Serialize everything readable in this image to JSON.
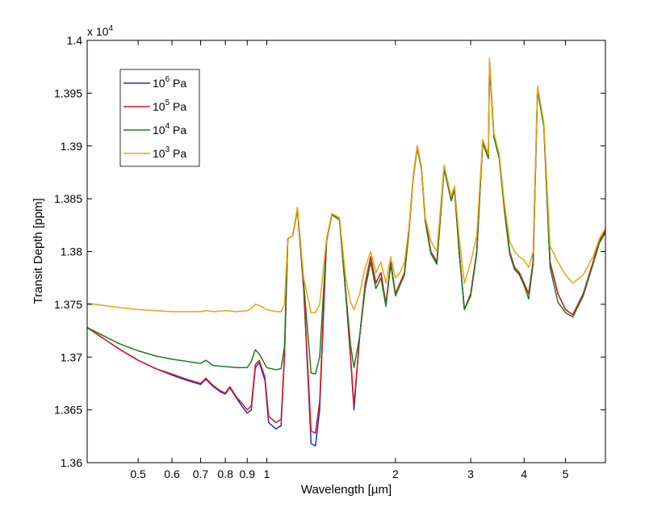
{
  "chart_data": {
    "type": "line",
    "xlabel": "Wavelength [µm]",
    "ylabel": "Transit Depth [ppm]",
    "y_multiplier_label": "x 10",
    "y_multiplier_exp": "4",
    "x_scale": "log",
    "xlim": [
      0.38,
      6.2
    ],
    "ylim": [
      1.36,
      1.4
    ],
    "x_ticks": [
      0.5,
      0.6,
      0.7,
      0.8,
      0.9,
      1,
      2,
      3,
      4,
      5
    ],
    "x_tick_labels": [
      "0.5",
      "0.6",
      "0.7",
      "0.8",
      "0.9",
      "1",
      "2",
      "3",
      "4",
      "5"
    ],
    "y_ticks": [
      1.36,
      1.365,
      1.37,
      1.375,
      1.38,
      1.385,
      1.39,
      1.395,
      1.4
    ],
    "y_tick_labels": [
      "1.36",
      "1.365",
      "1.37",
      "1.375",
      "1.38",
      "1.385",
      "1.39",
      "1.395",
      "1.4"
    ],
    "grid": false,
    "legend_position": "top-left",
    "series": [
      {
        "name": "10^6 Pa",
        "legend_base": "10",
        "legend_exp": "6",
        "legend_unit": "Pa",
        "color": "#1f2fd0",
        "x": [
          0.38,
          0.45,
          0.5,
          0.55,
          0.6,
          0.65,
          0.7,
          0.72,
          0.75,
          0.78,
          0.8,
          0.82,
          0.85,
          0.88,
          0.9,
          0.92,
          0.94,
          0.96,
          0.99,
          1.01,
          1.05,
          1.08,
          1.1,
          1.12,
          1.15,
          1.18,
          1.22,
          1.27,
          1.3,
          1.33,
          1.38,
          1.42,
          1.48,
          1.53,
          1.57,
          1.6,
          1.65,
          1.7,
          1.75,
          1.8,
          1.85,
          1.9,
          1.95,
          2.0,
          2.05,
          2.1,
          2.15,
          2.2,
          2.25,
          2.3,
          2.35,
          2.42,
          2.5,
          2.6,
          2.7,
          2.75,
          2.82,
          2.9,
          3.0,
          3.1,
          3.2,
          3.3,
          3.32,
          3.4,
          3.5,
          3.6,
          3.7,
          3.8,
          3.9,
          4.0,
          4.1,
          4.2,
          4.3,
          4.45,
          4.6,
          4.8,
          5.0,
          5.2,
          5.5,
          5.8,
          6.0,
          6.2
        ],
        "y": [
          1.3728,
          1.3708,
          1.3697,
          1.3689,
          1.3683,
          1.3678,
          1.3674,
          1.3679,
          1.3672,
          1.3667,
          1.3665,
          1.3671,
          1.3661,
          1.3652,
          1.3647,
          1.365,
          1.369,
          1.3695,
          1.3678,
          1.3638,
          1.3632,
          1.3635,
          1.37,
          1.3812,
          1.3815,
          1.384,
          1.3765,
          1.3618,
          1.3616,
          1.365,
          1.381,
          1.3835,
          1.383,
          1.376,
          1.37,
          1.365,
          1.372,
          1.377,
          1.3795,
          1.377,
          1.378,
          1.375,
          1.379,
          1.376,
          1.377,
          1.378,
          1.382,
          1.387,
          1.39,
          1.388,
          1.383,
          1.38,
          1.379,
          1.388,
          1.385,
          1.386,
          1.38,
          1.3745,
          1.376,
          1.38,
          1.3905,
          1.389,
          1.398,
          1.391,
          1.389,
          1.384,
          1.38,
          1.3785,
          1.378,
          1.377,
          1.376,
          1.379,
          1.3955,
          1.392,
          1.379,
          1.376,
          1.3745,
          1.374,
          1.376,
          1.379,
          1.381,
          1.382
        ]
      },
      {
        "name": "10^5 Pa",
        "legend_base": "10",
        "legend_exp": "5",
        "legend_unit": "Pa",
        "color": "#e3171b",
        "x": [
          0.38,
          0.45,
          0.5,
          0.55,
          0.6,
          0.65,
          0.7,
          0.72,
          0.75,
          0.78,
          0.8,
          0.82,
          0.85,
          0.88,
          0.9,
          0.92,
          0.94,
          0.96,
          0.99,
          1.01,
          1.05,
          1.08,
          1.1,
          1.12,
          1.15,
          1.18,
          1.22,
          1.27,
          1.3,
          1.33,
          1.38,
          1.42,
          1.48,
          1.53,
          1.57,
          1.6,
          1.65,
          1.7,
          1.75,
          1.8,
          1.85,
          1.9,
          1.95,
          2.0,
          2.05,
          2.1,
          2.15,
          2.2,
          2.25,
          2.3,
          2.35,
          2.42,
          2.5,
          2.6,
          2.7,
          2.75,
          2.82,
          2.9,
          3.0,
          3.1,
          3.2,
          3.3,
          3.32,
          3.4,
          3.5,
          3.6,
          3.7,
          3.8,
          3.9,
          4.0,
          4.1,
          4.2,
          4.3,
          4.45,
          4.6,
          4.8,
          5.0,
          5.2,
          5.5,
          5.8,
          6.0,
          6.2
        ],
        "y": [
          1.3728,
          1.3708,
          1.3697,
          1.3689,
          1.3684,
          1.3679,
          1.3675,
          1.368,
          1.3673,
          1.3668,
          1.3666,
          1.3672,
          1.3662,
          1.3655,
          1.365,
          1.3654,
          1.3693,
          1.3697,
          1.3681,
          1.3644,
          1.3638,
          1.3641,
          1.3702,
          1.3812,
          1.3815,
          1.384,
          1.3766,
          1.363,
          1.3628,
          1.3658,
          1.381,
          1.3835,
          1.383,
          1.3761,
          1.3702,
          1.3655,
          1.372,
          1.377,
          1.3795,
          1.377,
          1.378,
          1.375,
          1.379,
          1.376,
          1.377,
          1.378,
          1.382,
          1.387,
          1.39,
          1.388,
          1.383,
          1.38,
          1.379,
          1.388,
          1.385,
          1.386,
          1.38,
          1.3745,
          1.376,
          1.38,
          1.3905,
          1.389,
          1.398,
          1.391,
          1.389,
          1.384,
          1.38,
          1.3785,
          1.378,
          1.377,
          1.376,
          1.379,
          1.3955,
          1.392,
          1.379,
          1.376,
          1.3745,
          1.374,
          1.376,
          1.379,
          1.381,
          1.382
        ]
      },
      {
        "name": "10^4 Pa",
        "legend_base": "10",
        "legend_exp": "4",
        "legend_unit": "Pa",
        "color": "#1e7d1e",
        "x": [
          0.38,
          0.45,
          0.5,
          0.55,
          0.6,
          0.65,
          0.7,
          0.72,
          0.75,
          0.8,
          0.85,
          0.9,
          0.92,
          0.94,
          0.96,
          1.0,
          1.05,
          1.08,
          1.1,
          1.12,
          1.15,
          1.18,
          1.22,
          1.27,
          1.3,
          1.33,
          1.38,
          1.42,
          1.48,
          1.53,
          1.57,
          1.6,
          1.65,
          1.7,
          1.75,
          1.8,
          1.85,
          1.9,
          1.95,
          2.0,
          2.05,
          2.1,
          2.15,
          2.2,
          2.25,
          2.3,
          2.35,
          2.42,
          2.5,
          2.6,
          2.7,
          2.75,
          2.82,
          2.9,
          3.0,
          3.1,
          3.2,
          3.3,
          3.32,
          3.4,
          3.5,
          3.6,
          3.7,
          3.8,
          3.9,
          4.0,
          4.1,
          4.2,
          4.3,
          4.45,
          4.6,
          4.8,
          5.0,
          5.2,
          5.5,
          5.8,
          6.0,
          6.2
        ],
        "y": [
          1.3728,
          1.3713,
          1.3706,
          1.3701,
          1.3698,
          1.3696,
          1.3694,
          1.3697,
          1.3692,
          1.3691,
          1.369,
          1.369,
          1.3696,
          1.3707,
          1.3703,
          1.369,
          1.3688,
          1.3689,
          1.371,
          1.3812,
          1.3815,
          1.384,
          1.377,
          1.3685,
          1.3684,
          1.37,
          1.381,
          1.3835,
          1.383,
          1.3762,
          1.3712,
          1.369,
          1.372,
          1.3765,
          1.379,
          1.3765,
          1.3775,
          1.3748,
          1.3788,
          1.3758,
          1.3768,
          1.3778,
          1.3818,
          1.3868,
          1.3898,
          1.3878,
          1.3828,
          1.3798,
          1.3788,
          1.3878,
          1.3848,
          1.3858,
          1.3798,
          1.3745,
          1.3758,
          1.3798,
          1.3903,
          1.3888,
          1.3978,
          1.3908,
          1.3888,
          1.3838,
          1.3798,
          1.3783,
          1.3778,
          1.3768,
          1.3755,
          1.3788,
          1.3953,
          1.3918,
          1.3785,
          1.3752,
          1.3742,
          1.3738,
          1.3758,
          1.3788,
          1.3808,
          1.3818
        ]
      },
      {
        "name": "10^3 Pa",
        "legend_base": "10",
        "legend_exp": "3",
        "legend_unit": "Pa",
        "color": "#f0a10f",
        "x": [
          0.38,
          0.45,
          0.5,
          0.55,
          0.6,
          0.65,
          0.7,
          0.72,
          0.75,
          0.8,
          0.85,
          0.9,
          0.92,
          0.94,
          0.96,
          1.0,
          1.05,
          1.08,
          1.1,
          1.12,
          1.15,
          1.18,
          1.22,
          1.27,
          1.3,
          1.33,
          1.38,
          1.42,
          1.48,
          1.53,
          1.57,
          1.6,
          1.65,
          1.7,
          1.75,
          1.8,
          1.85,
          1.9,
          1.95,
          2.0,
          2.05,
          2.1,
          2.15,
          2.2,
          2.25,
          2.3,
          2.35,
          2.42,
          2.5,
          2.6,
          2.7,
          2.75,
          2.82,
          2.9,
          3.0,
          3.1,
          3.2,
          3.3,
          3.32,
          3.4,
          3.5,
          3.6,
          3.7,
          3.8,
          3.9,
          4.0,
          4.1,
          4.2,
          4.3,
          4.45,
          4.6,
          4.8,
          5.0,
          5.2,
          5.5,
          5.8,
          6.0,
          6.2
        ],
        "y": [
          1.3751,
          1.3747,
          1.3745,
          1.3744,
          1.3743,
          1.3743,
          1.3743,
          1.3744,
          1.3743,
          1.3744,
          1.3743,
          1.3744,
          1.3746,
          1.375,
          1.3749,
          1.3745,
          1.3743,
          1.3743,
          1.375,
          1.3812,
          1.3815,
          1.3842,
          1.3775,
          1.3742,
          1.3742,
          1.375,
          1.3812,
          1.3836,
          1.3832,
          1.3775,
          1.3752,
          1.3745,
          1.376,
          1.3785,
          1.38,
          1.378,
          1.379,
          1.377,
          1.3795,
          1.3775,
          1.378,
          1.379,
          1.3822,
          1.387,
          1.39,
          1.388,
          1.3832,
          1.381,
          1.38,
          1.3882,
          1.3852,
          1.3862,
          1.3812,
          1.377,
          1.379,
          1.3815,
          1.3906,
          1.3892,
          1.3983,
          1.3912,
          1.3892,
          1.3845,
          1.381,
          1.38,
          1.3795,
          1.3792,
          1.3785,
          1.38,
          1.3957,
          1.3922,
          1.3805,
          1.379,
          1.3778,
          1.377,
          1.3778,
          1.3795,
          1.3812,
          1.3822
        ]
      }
    ]
  }
}
